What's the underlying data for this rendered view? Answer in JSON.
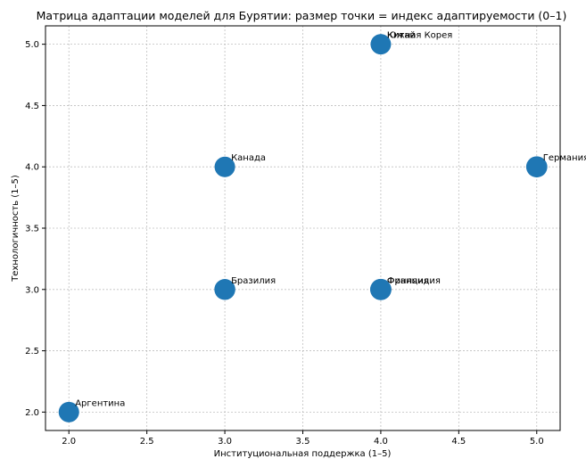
{
  "chart_data": {
    "type": "scatter",
    "title": "Матрица адаптации моделей для Бурятии: размер точки = индекс адаптируемости (0–1)",
    "xlabel": "Институциональная поддержка (1–5)",
    "ylabel": "Технологичность (1–5)",
    "xlim": [
      1.85,
      5.15
    ],
    "ylim": [
      1.85,
      5.15
    ],
    "xticks": [
      "2.0",
      "2.5",
      "3.0",
      "3.5",
      "4.0",
      "4.5",
      "5.0"
    ],
    "yticks": [
      "2.0",
      "2.5",
      "3.0",
      "3.5",
      "4.0",
      "4.5",
      "5.0"
    ],
    "grid": true,
    "point_color": "#1f77b4",
    "points": [
      {
        "label": "Аргентина",
        "x": 2,
        "y": 2,
        "index": 0.5
      },
      {
        "label": "Бразилия",
        "x": 3,
        "y": 3,
        "index": 0.58
      },
      {
        "label": "Канада",
        "x": 3,
        "y": 4,
        "index": 0.5
      },
      {
        "label": "Китай",
        "x": 4,
        "y": 5,
        "index": 0.48
      },
      {
        "label": "Южная Корея",
        "x": 4,
        "y": 5,
        "index": 0.45
      },
      {
        "label": "Франция",
        "x": 4,
        "y": 3,
        "index": 0.65
      },
      {
        "label": "Финляндия",
        "x": 4,
        "y": 3,
        "index": 0.6
      },
      {
        "label": "Германия",
        "x": 5,
        "y": 4,
        "index": 0.62
      }
    ]
  }
}
